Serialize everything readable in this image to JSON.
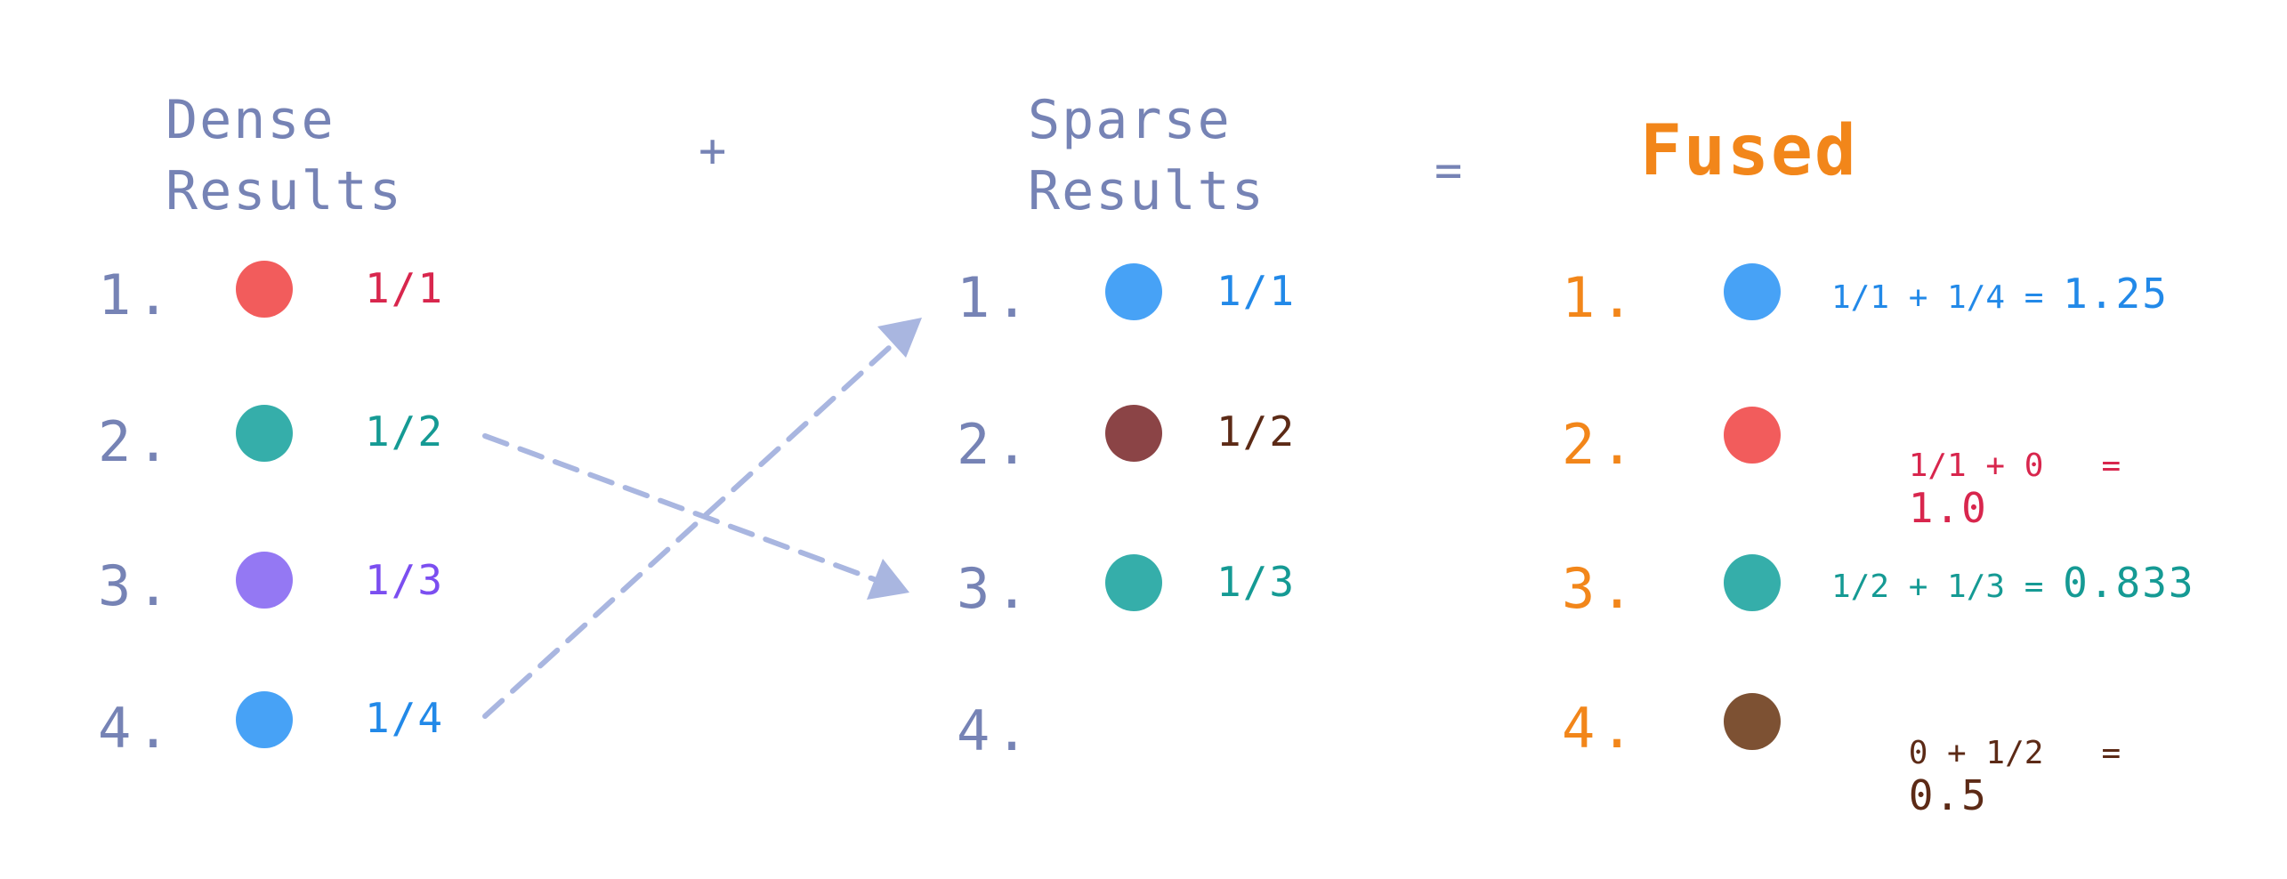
{
  "dense": {
    "title_line1": "Dense",
    "title_line2": "Results",
    "items": [
      {
        "rank": "1.",
        "score": "1/1",
        "dot_color": "#f25c5c",
        "text_color": "#d8264d"
      },
      {
        "rank": "2.",
        "score": "1/2",
        "dot_color": "#35aeaa",
        "text_color": "#159a94"
      },
      {
        "rank": "3.",
        "score": "1/3",
        "dot_color": "#9478f3",
        "text_color": "#7b4ef0"
      },
      {
        "rank": "4.",
        "score": "1/4",
        "dot_color": "#47a2f6",
        "text_color": "#2289e8"
      }
    ]
  },
  "plus": "+",
  "sparse": {
    "title_line1": "Sparse",
    "title_line2": "Results",
    "items": [
      {
        "rank": "1.",
        "score": "1/1",
        "dot_color": "#47a2f6",
        "text_color": "#2289e8"
      },
      {
        "rank": "2.",
        "score": "1/2",
        "dot_color": "#8b4446",
        "text_color": "#5c2a16"
      },
      {
        "rank": "3.",
        "score": "1/3",
        "dot_color": "#35aeaa",
        "text_color": "#159a94"
      },
      {
        "rank": "4.",
        "score": ""
      }
    ]
  },
  "equals": "=",
  "fused": {
    "title": "Fused",
    "items": [
      {
        "rank": "1.",
        "formula": "1/1 + 1/4 =",
        "result": "1.25",
        "dot_color": "#47a2f6",
        "text_color": "#2289e8"
      },
      {
        "rank": "2.",
        "formula": "1/1 + 0   =",
        "result": "1.0",
        "dot_color": "#f25c5c",
        "text_color": "#d8264d"
      },
      {
        "rank": "3.",
        "formula": "1/2 + 1/3 =",
        "result": "0.833",
        "dot_color": "#35aeaa",
        "text_color": "#159a94"
      },
      {
        "rank": "4.",
        "formula": "0 + 1/2   =",
        "result": "0.5",
        "dot_color": "#7d5133",
        "text_color": "#5c2a16"
      }
    ]
  },
  "colors": {
    "label": "#7683b5",
    "fused_accent": "#f2861a",
    "arrow": "#a9b6e0"
  }
}
